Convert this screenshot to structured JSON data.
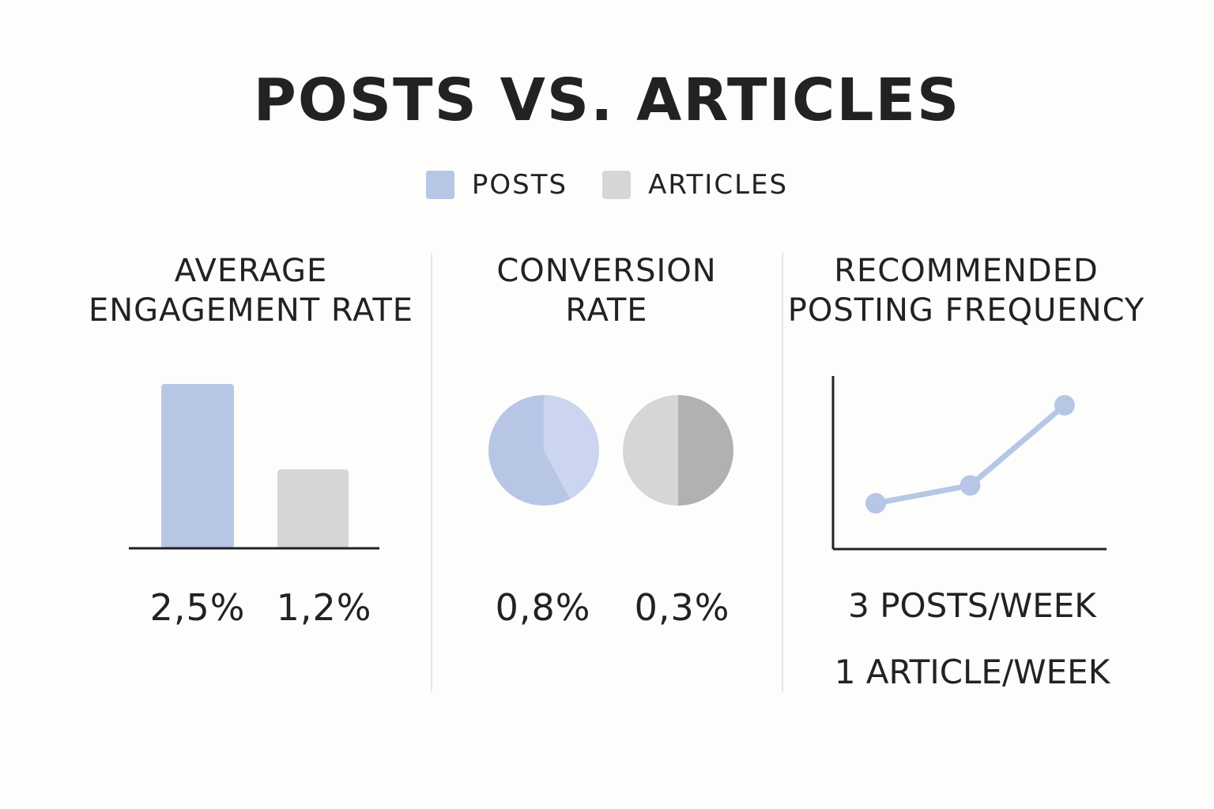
{
  "title": "POSTS VS. ARTICLES",
  "legend": [
    {
      "label": "POSTS",
      "color": "#b8c6e6",
      "icon": "square-swatch"
    },
    {
      "label": "ARTICLES",
      "color": "#d6d6d6",
      "icon": "square-swatch"
    }
  ],
  "panels": {
    "engagement": {
      "title_line1": "AVERAGE",
      "title_line2": "ENGAGEMENT RATE",
      "posts_value": "2,5%",
      "articles_value": "1,2%"
    },
    "conversion": {
      "title_line1": "CONVERSION",
      "title_line2": "RATE",
      "posts_value": "0,8%",
      "articles_value": "0,3%"
    },
    "frequency": {
      "title_line1": "RECOMMENDED",
      "title_line2": "POSTING FREQUENCY",
      "posts_value": "3 POSTS/WEEK",
      "articles_value": "1 ARTICLE/WEEK"
    }
  },
  "chart_data": [
    {
      "type": "bar",
      "title": "AVERAGE ENGAGEMENT RATE",
      "categories": [
        "POSTS",
        "ARTICLES"
      ],
      "values": [
        2.5,
        1.2
      ],
      "unit": "%",
      "colors": [
        "#b8c6e6",
        "#d6d6d6"
      ],
      "ylim": [
        0,
        2.5
      ],
      "grid": false
    },
    {
      "type": "pie",
      "title": "CONVERSION RATE",
      "slices": [
        {
          "series": "POSTS",
          "value": 0.8,
          "unit": "%",
          "color": "#b8c6e6",
          "highlight_color": "#cbd5ef"
        },
        {
          "series": "ARTICLES",
          "value": 0.3,
          "unit": "%",
          "color": "#d6d6d6",
          "highlight_color": "#b1b1b1"
        }
      ]
    },
    {
      "type": "line",
      "title": "RECOMMENDED POSTING FREQUENCY",
      "x": [
        1,
        2,
        3
      ],
      "y": [
        1,
        1.4,
        3.2
      ],
      "color": "#b8c6e6",
      "grid": false
    }
  ]
}
